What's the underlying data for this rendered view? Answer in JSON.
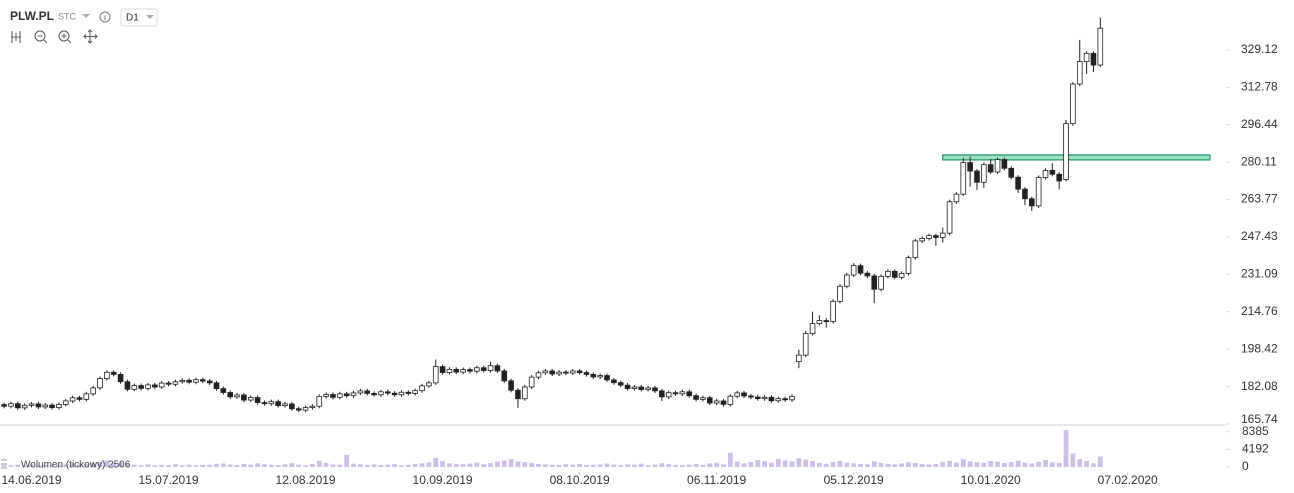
{
  "chart_data": {
    "type": "candlestick",
    "symbol": "PLW.PL",
    "source": "STC",
    "interval": "D1",
    "up_color": "#ffffff",
    "down_color": "#222222",
    "xlim": [
      -0.6,
      178.2
    ],
    "xticks": [
      {
        "value": 4,
        "label": "14.06.2019"
      },
      {
        "value": 24,
        "label": "15.07.2019"
      },
      {
        "value": 44,
        "label": "12.08.2019"
      },
      {
        "value": 64,
        "label": "10.09.2019"
      },
      {
        "value": 84,
        "label": "08.10.2019"
      },
      {
        "value": 104,
        "label": "06.11.2019"
      },
      {
        "value": 124,
        "label": "05.12.2019"
      },
      {
        "value": 144,
        "label": "10.01.2020"
      },
      {
        "value": 164,
        "label": "07.02.2020"
      }
    ],
    "ylim": [
      165.74,
      350.9
    ],
    "yticks": [
      165.74,
      182.08,
      198.42,
      214.76,
      231.09,
      247.43,
      263.77,
      280.11,
      296.44,
      312.78,
      329.12
    ],
    "open": [
      174.2,
      173.5,
      174.6,
      172.8,
      173.9,
      174.5,
      173.2,
      174.0,
      172.9,
      174.3,
      175.8,
      177.2,
      176.5,
      178.9,
      181.5,
      185.6,
      188.3,
      187.4,
      184.2,
      180.9,
      182.5,
      181.3,
      182.8,
      181.9,
      183.6,
      183.1,
      184.2,
      184.8,
      184.0,
      185.1,
      184.5,
      183.7,
      181.2,
      179.5,
      177.6,
      178.4,
      176.2,
      177.3,
      175.1,
      174.6,
      175.5,
      173.8,
      174.5,
      172.4,
      171.8,
      172.9,
      173.5,
      177.8,
      178.6,
      177.4,
      178.9,
      178.1,
      179.3,
      180.2,
      179.1,
      178.5,
      179.8,
      179.2,
      178.5,
      179.6,
      179.1,
      180.3,
      182.4,
      183.7,
      190.8,
      188.2,
      189.6,
      188.4,
      189.5,
      188.8,
      190.3,
      189.1,
      191.2,
      188.9,
      184.6,
      180.5,
      176.8,
      181.9,
      186.2,
      188.1,
      188.9,
      187.6,
      188.4,
      188.0,
      188.9,
      188.2,
      187.4,
      186.3,
      186.9,
      185.0,
      183.8,
      182.7,
      181.2,
      181.9,
      180.8,
      181.5,
      180.2,
      177.6,
      179.4,
      178.9,
      179.8,
      178.1,
      176.5,
      177.2,
      174.9,
      175.8,
      174.3,
      177.9,
      179.3,
      178.0,
      177.5,
      176.8,
      177.4,
      175.9,
      176.8,
      176.3,
      193.0,
      195.8,
      205.2,
      209.6,
      210.9,
      210.5,
      219.3,
      225.9,
      230.8,
      234.9,
      231.6,
      230.4,
      224.6,
      230.2,
      232.4,
      229.8,
      231.5,
      238.4,
      245.7,
      246.8,
      248.0,
      247.2,
      249.1,
      262.8,
      266.1,
      279.9,
      276.2,
      271.3,
      279.0,
      275.8,
      281.2,
      277.4,
      273.5,
      268.3,
      264.1,
      261.0,
      273.4,
      276.5,
      274.8,
      272.5,
      296.9,
      314.2,
      324.0,
      327.6,
      322.5
    ],
    "high": [
      175.1,
      175.5,
      175.5,
      174.8,
      175.4,
      175.4,
      174.9,
      174.9,
      175.2,
      176.7,
      178.1,
      178.1,
      179.8,
      182.4,
      186.5,
      189.2,
      189.2,
      188.3,
      185.1,
      183.4,
      183.4,
      183.7,
      183.7,
      184.5,
      184.5,
      185.1,
      185.7,
      185.7,
      186.0,
      186.0,
      185.4,
      184.6,
      182.1,
      180.4,
      179.3,
      179.3,
      178.2,
      178.2,
      176.0,
      176.4,
      176.4,
      175.4,
      175.4,
      173.3,
      173.8,
      174.4,
      178.7,
      179.5,
      179.5,
      179.8,
      179.8,
      180.2,
      181.1,
      181.1,
      180.0,
      180.7,
      180.7,
      180.1,
      180.5,
      180.5,
      181.2,
      183.3,
      184.6,
      193.9,
      191.7,
      190.5,
      190.5,
      190.4,
      190.4,
      191.2,
      191.2,
      192.9,
      192.1,
      189.8,
      185.5,
      181.4,
      182.8,
      187.1,
      189.0,
      189.8,
      189.8,
      189.3,
      189.3,
      189.8,
      189.8,
      189.1,
      188.3,
      187.8,
      187.8,
      185.9,
      184.7,
      183.6,
      182.8,
      182.8,
      182.4,
      182.4,
      181.1,
      180.3,
      180.3,
      180.7,
      180.7,
      179.0,
      178.1,
      178.1,
      176.7,
      176.7,
      178.8,
      180.2,
      180.2,
      178.9,
      178.4,
      178.3,
      178.3,
      177.7,
      177.7,
      178.7,
      198.2,
      206.4,
      214.8,
      213.2,
      212.0,
      220.2,
      226.8,
      231.7,
      236.0,
      235.8,
      232.5,
      231.3,
      231.1,
      233.3,
      233.3,
      232.4,
      239.3,
      246.6,
      247.7,
      248.9,
      248.9,
      251.5,
      263.7,
      267.0,
      282.0,
      282.5,
      277.1,
      279.9,
      281.5,
      282.1,
      282.1,
      278.3,
      274.4,
      269.2,
      265.0,
      274.3,
      277.4,
      279.6,
      275.7,
      298.5,
      315.1,
      333.5,
      328.5,
      328.5,
      343.2
    ],
    "low": [
      172.6,
      172.6,
      171.9,
      171.9,
      173.0,
      172.3,
      172.3,
      172.0,
      172.0,
      173.4,
      174.9,
      175.6,
      175.6,
      178.0,
      180.6,
      184.7,
      186.5,
      183.3,
      180.0,
      180.0,
      180.4,
      180.4,
      181.0,
      181.0,
      182.2,
      182.2,
      183.3,
      183.1,
      183.1,
      183.6,
      182.8,
      180.3,
      178.6,
      176.7,
      176.7,
      175.3,
      175.3,
      174.2,
      173.7,
      173.7,
      172.9,
      172.9,
      171.5,
      170.9,
      170.9,
      172.0,
      172.6,
      176.9,
      176.5,
      176.5,
      177.2,
      177.2,
      178.4,
      178.2,
      177.6,
      177.6,
      178.3,
      177.6,
      177.6,
      178.2,
      178.2,
      179.4,
      181.5,
      182.8,
      187.3,
      187.3,
      187.5,
      187.5,
      187.9,
      187.9,
      188.2,
      188.2,
      188.0,
      183.7,
      179.6,
      172.8,
      175.9,
      181.0,
      185.3,
      187.2,
      186.7,
      186.7,
      187.1,
      187.1,
      187.3,
      186.5,
      185.4,
      185.4,
      184.1,
      182.9,
      181.8,
      180.3,
      180.3,
      179.9,
      179.9,
      179.3,
      175.8,
      176.7,
      178.0,
      178.0,
      177.2,
      175.6,
      175.6,
      174.0,
      174.0,
      173.4,
      173.4,
      177.0,
      177.1,
      176.6,
      175.9,
      175.9,
      175.0,
      175.0,
      175.4,
      175.4,
      190.1,
      194.9,
      204.3,
      208.7,
      207.8,
      209.6,
      218.4,
      225.0,
      229.9,
      230.7,
      229.5,
      218.5,
      223.7,
      229.3,
      228.9,
      228.9,
      230.6,
      237.5,
      244.8,
      245.9,
      243.6,
      245.0,
      248.2,
      261.9,
      265.2,
      269.4,
      268.0,
      268.9,
      274.9,
      274.9,
      276.5,
      272.6,
      266.6,
      261.3,
      258.8,
      260.1,
      272.5,
      273.9,
      268.2,
      271.6,
      296.0,
      313.3,
      318.6,
      319.4,
      321.6
    ],
    "close": [
      173.5,
      174.6,
      172.8,
      173.9,
      174.5,
      173.2,
      174.0,
      172.9,
      174.3,
      175.8,
      177.2,
      176.5,
      178.9,
      181.5,
      185.6,
      188.3,
      187.4,
      184.2,
      180.9,
      182.5,
      181.3,
      182.8,
      181.9,
      183.6,
      183.1,
      184.2,
      184.8,
      184.0,
      185.1,
      184.5,
      183.7,
      181.2,
      179.5,
      177.6,
      178.4,
      176.2,
      177.3,
      175.1,
      174.6,
      175.5,
      173.8,
      174.5,
      172.4,
      171.8,
      172.9,
      173.5,
      177.8,
      178.6,
      177.4,
      178.9,
      178.1,
      179.3,
      180.2,
      179.1,
      178.5,
      179.8,
      179.2,
      178.5,
      179.6,
      179.1,
      180.3,
      182.4,
      183.7,
      190.8,
      188.2,
      189.6,
      188.4,
      189.5,
      188.8,
      190.3,
      189.1,
      191.2,
      188.9,
      184.6,
      180.5,
      176.8,
      181.9,
      186.2,
      188.1,
      188.9,
      187.6,
      188.4,
      188.0,
      188.9,
      188.2,
      187.4,
      186.3,
      186.9,
      185.0,
      183.8,
      182.7,
      181.2,
      181.9,
      180.8,
      181.5,
      180.2,
      177.6,
      179.4,
      178.9,
      179.8,
      178.1,
      176.5,
      177.2,
      174.9,
      175.8,
      174.3,
      177.9,
      179.3,
      178.0,
      177.5,
      176.8,
      177.4,
      175.9,
      176.8,
      176.3,
      177.8,
      195.8,
      205.2,
      209.6,
      210.9,
      210.5,
      219.3,
      225.9,
      230.8,
      234.9,
      231.6,
      230.4,
      224.6,
      230.2,
      232.4,
      229.8,
      231.5,
      238.4,
      245.7,
      246.8,
      248.0,
      247.2,
      249.1,
      262.8,
      266.1,
      279.9,
      276.2,
      271.3,
      279.0,
      275.8,
      281.2,
      277.4,
      273.5,
      268.3,
      264.1,
      261.0,
      273.4,
      276.5,
      274.8,
      271.9,
      296.9,
      314.2,
      324.0,
      327.6,
      322.5,
      338.6
    ],
    "band": {
      "from": 281.1,
      "to": 283.2,
      "start": 137,
      "end": 176,
      "color": "#9ee0c0",
      "stroke": "#3aa57a"
    },
    "volume": {
      "label": "Wolumen (tickowy) 2506",
      "color": "#cdbfe6",
      "ylim": [
        0,
        10000
      ],
      "yticks": [
        0,
        4192,
        8385
      ],
      "values": [
        420,
        380,
        510,
        290,
        600,
        350,
        470,
        310,
        520,
        640,
        880,
        560,
        720,
        930,
        1240,
        1560,
        980,
        1130,
        760,
        540,
        430,
        610,
        380,
        520,
        450,
        690,
        410,
        560,
        370,
        480,
        520,
        760,
        830,
        610,
        490,
        720,
        560,
        880,
        640,
        530,
        470,
        620,
        910,
        540,
        380,
        700,
        1480,
        960,
        620,
        540,
        2900,
        780,
        650,
        520,
        610,
        480,
        560,
        690,
        420,
        510,
        740,
        880,
        1120,
        2150,
        1380,
        870,
        760,
        690,
        820,
        1040,
        660,
        930,
        1280,
        1540,
        1860,
        1320,
        1150,
        980,
        720,
        610,
        540,
        480,
        660,
        590,
        720,
        460,
        530,
        610,
        820,
        570,
        490,
        640,
        530,
        780,
        420,
        560,
        920,
        680,
        510,
        460,
        590,
        720,
        480,
        850,
        1020,
        640,
        3400,
        1280,
        860,
        1170,
        1640,
        1380,
        1020,
        1920,
        1580,
        1340,
        2060,
        1760,
        1420,
        980,
        760,
        1180,
        1460,
        1020,
        880,
        720,
        650,
        1340,
        980,
        760,
        620,
        840,
        1120,
        960,
        680,
        590,
        720,
        1180,
        1440,
        1080,
        1860,
        1340,
        1120,
        980,
        1420,
        1260,
        960,
        1180,
        1520,
        1040,
        860,
        1240,
        1660,
        1120,
        980,
        8800,
        3200,
        1840,
        1420,
        880,
        2506
      ]
    }
  }
}
